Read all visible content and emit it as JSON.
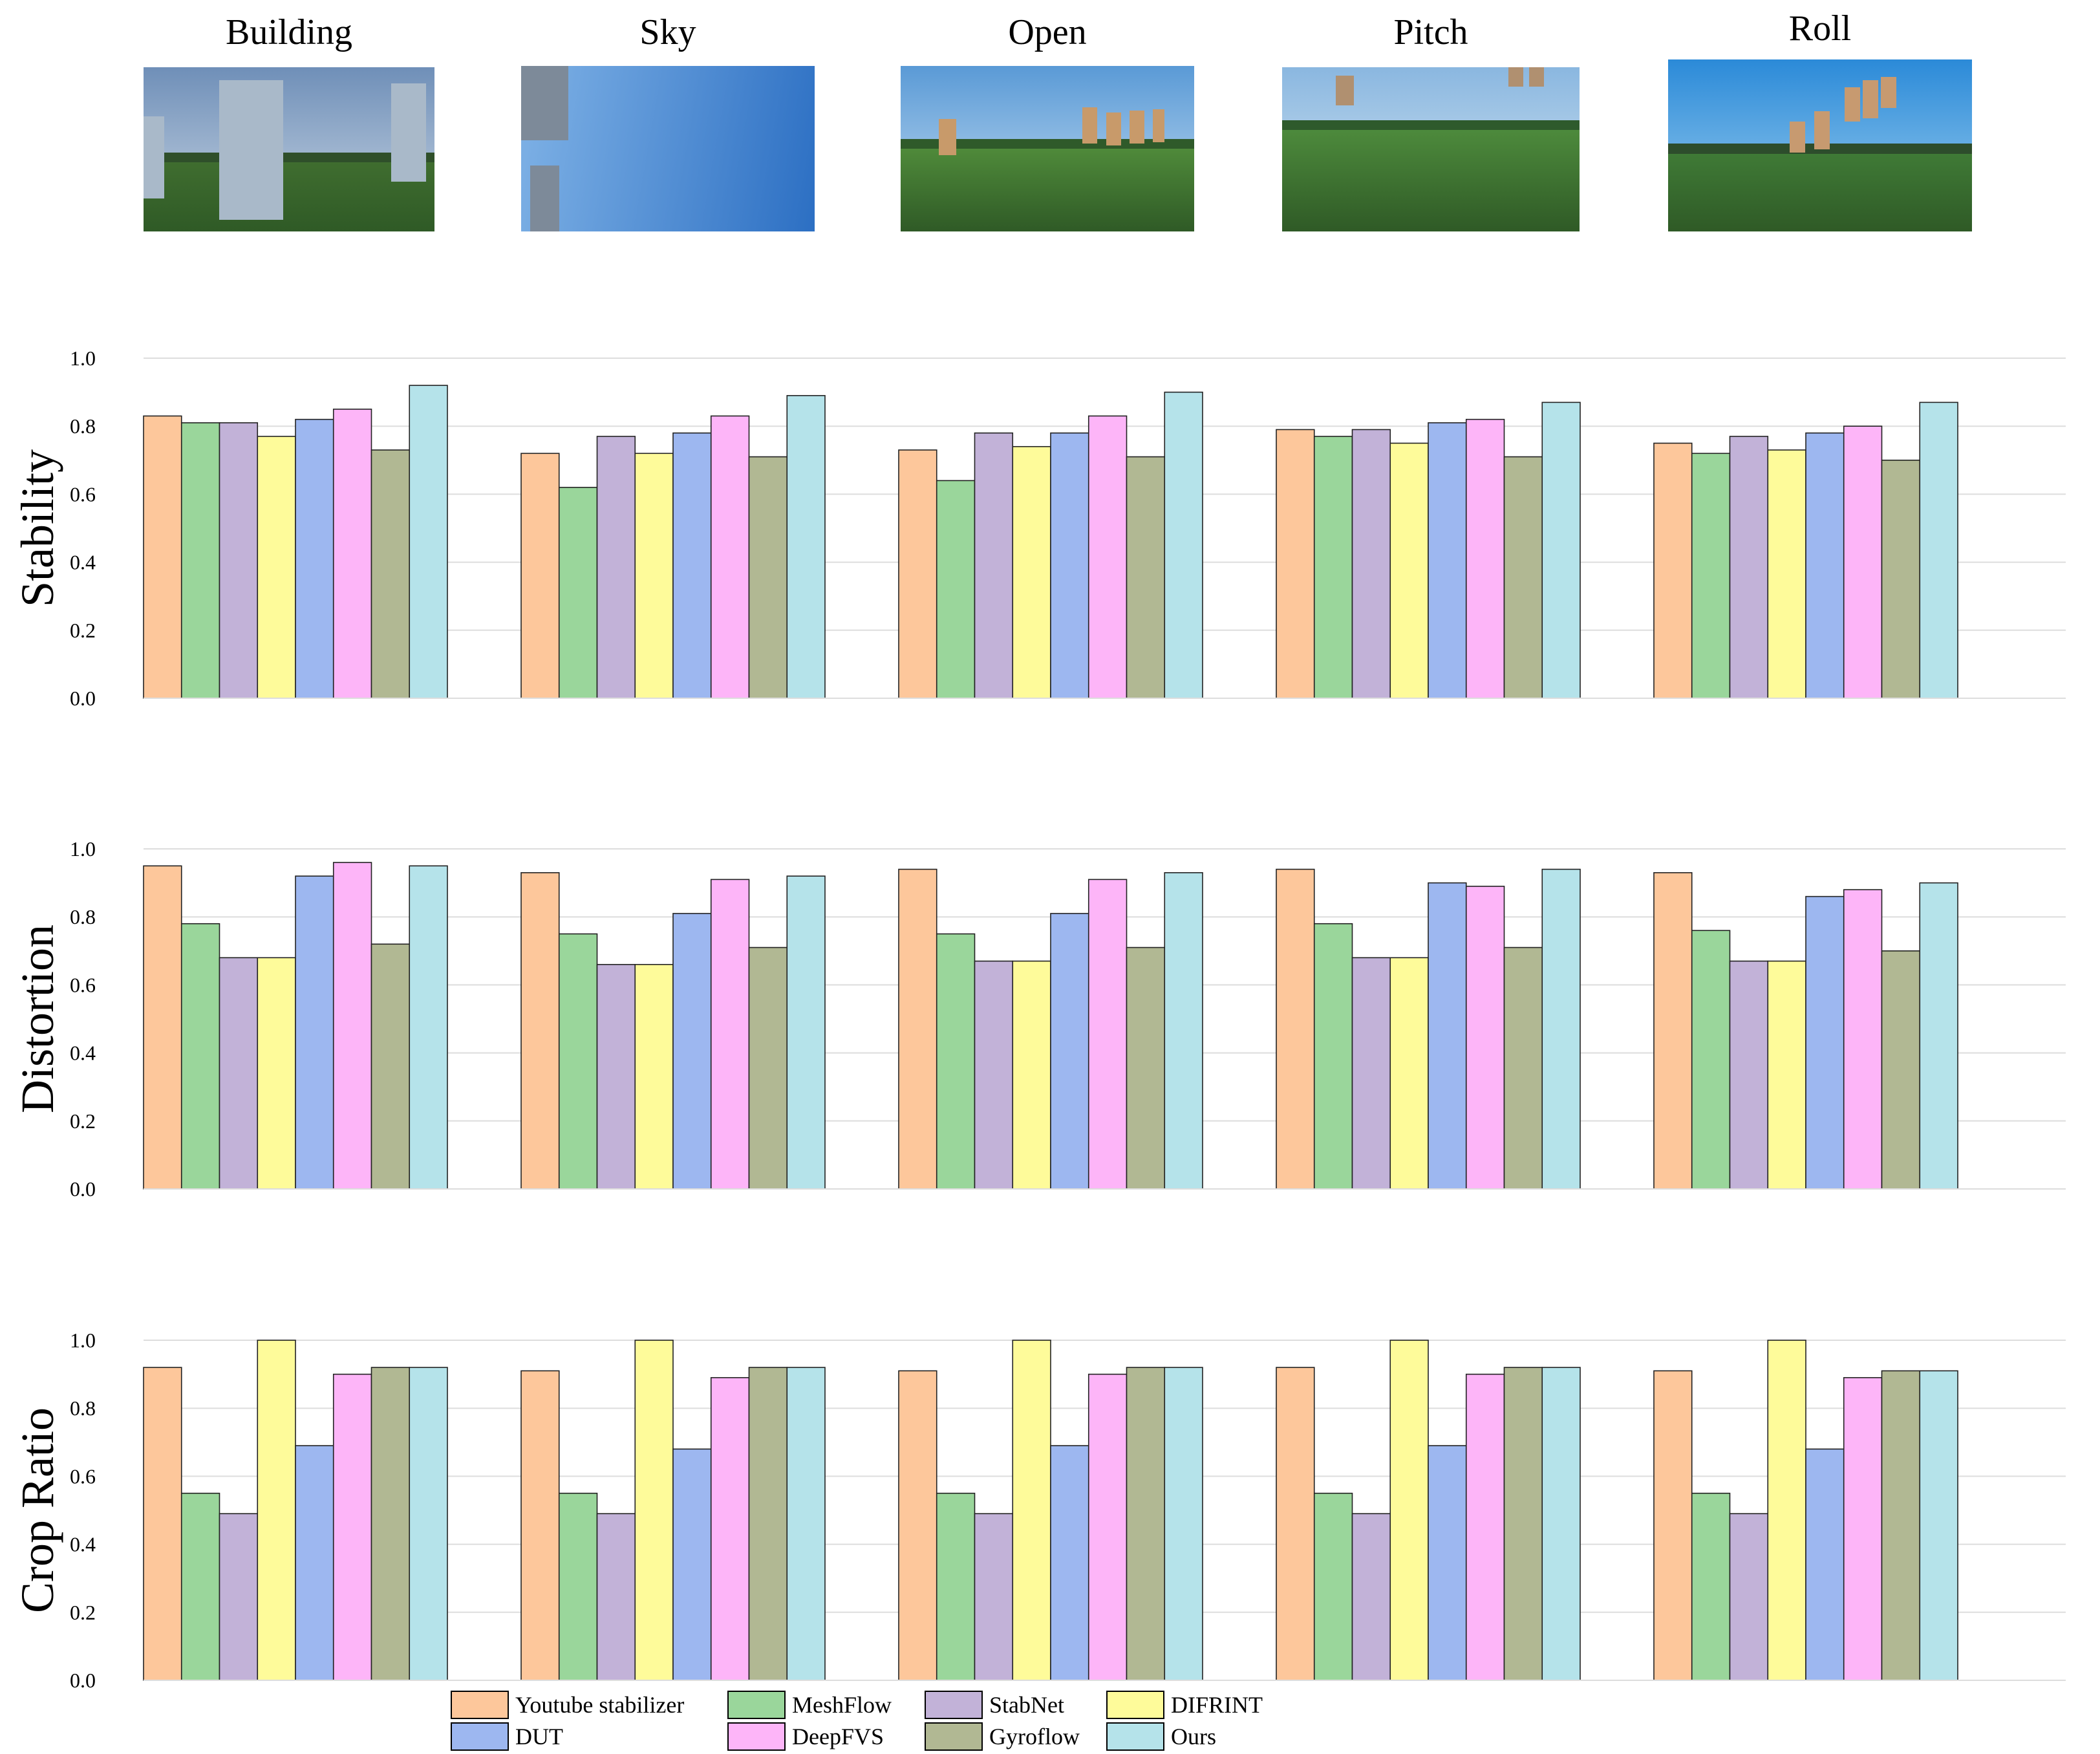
{
  "scenes": [
    {
      "name": "Building",
      "thumb": {
        "sky_top": "#6f8fb8",
        "sky_bottom": "#c9d6e4",
        "ground": "#3f6d2f",
        "building": "#a9b9c9",
        "tree": "#2f4f2a"
      }
    },
    {
      "name": "Sky",
      "thumb": {
        "sky_top": "#2c6fc3",
        "sky_bottom": "#7fb2e6",
        "ground": "#5e7ea6",
        "building": "#7d8a99",
        "tree": "#3b4b5c"
      }
    },
    {
      "name": "Open",
      "thumb": {
        "sky_top": "#5a9ad6",
        "sky_bottom": "#c8dff2",
        "ground": "#4f8a3a",
        "building": "#c89a6a",
        "tree": "#2f5a2a"
      }
    },
    {
      "name": "Pitch",
      "thumb": {
        "sky_top": "#8ab7e0",
        "sky_bottom": "#d8e8f2",
        "ground": "#4d8a3c",
        "building": "#b09070",
        "tree": "#2e5a2c"
      }
    },
    {
      "name": "Roll",
      "thumb": {
        "sky_top": "#2b8ad8",
        "sky_bottom": "#9fd0f0",
        "ground": "#3f7a36",
        "building": "#c79a70",
        "tree": "#2d4d2c"
      }
    }
  ],
  "methods": [
    {
      "name": "Youtube stabilizer",
      "color": "#fdc79b"
    },
    {
      "name": "MeshFlow",
      "color": "#9ad69b"
    },
    {
      "name": "StabNet",
      "color": "#c2b2d8"
    },
    {
      "name": "DIFRINT",
      "color": "#fefb9a"
    },
    {
      "name": "DUT",
      "color": "#9db7f0"
    },
    {
      "name": "DeepFVS",
      "color": "#fdb5f8"
    },
    {
      "name": "Gyroflow",
      "color": "#b1b893"
    },
    {
      "name": "Ours",
      "color": "#b5e3ea"
    }
  ],
  "chart_data": [
    {
      "type": "bar",
      "ylabel": "Stability",
      "ylim": [
        0,
        1.0
      ],
      "yticks": [
        0.0,
        0.2,
        0.4,
        0.6,
        0.8,
        1.0
      ],
      "ytick_labels": [
        "0.0",
        "0.2",
        "0.4",
        "0.6",
        "0.8",
        "1.0"
      ],
      "grid": true,
      "categories": [
        "Building",
        "Sky",
        "Open",
        "Pitch",
        "Roll"
      ],
      "series": [
        {
          "name": "Youtube stabilizer",
          "values": [
            0.83,
            0.72,
            0.73,
            0.79,
            0.75
          ]
        },
        {
          "name": "MeshFlow",
          "values": [
            0.81,
            0.62,
            0.64,
            0.77,
            0.72
          ]
        },
        {
          "name": "StabNet",
          "values": [
            0.81,
            0.77,
            0.78,
            0.79,
            0.77
          ]
        },
        {
          "name": "DIFRINT",
          "values": [
            0.77,
            0.72,
            0.74,
            0.75,
            0.73
          ]
        },
        {
          "name": "DUT",
          "values": [
            0.82,
            0.78,
            0.78,
            0.81,
            0.78
          ]
        },
        {
          "name": "DeepFVS",
          "values": [
            0.85,
            0.83,
            0.83,
            0.82,
            0.8
          ]
        },
        {
          "name": "Gyroflow",
          "values": [
            0.73,
            0.71,
            0.71,
            0.71,
            0.7
          ]
        },
        {
          "name": "Ours",
          "values": [
            0.92,
            0.89,
            0.9,
            0.87,
            0.87
          ]
        }
      ]
    },
    {
      "type": "bar",
      "ylabel": "Distortion",
      "ylim": [
        0,
        1.0
      ],
      "yticks": [
        0.0,
        0.2,
        0.4,
        0.6,
        0.8,
        1.0
      ],
      "ytick_labels": [
        "0.0",
        "0.2",
        "0.4",
        "0.6",
        "0.8",
        "1.0"
      ],
      "grid": true,
      "categories": [
        "Building",
        "Sky",
        "Open",
        "Pitch",
        "Roll"
      ],
      "series": [
        {
          "name": "Youtube stabilizer",
          "values": [
            0.95,
            0.93,
            0.94,
            0.94,
            0.93
          ]
        },
        {
          "name": "MeshFlow",
          "values": [
            0.78,
            0.75,
            0.75,
            0.78,
            0.76
          ]
        },
        {
          "name": "StabNet",
          "values": [
            0.68,
            0.66,
            0.67,
            0.68,
            0.67
          ]
        },
        {
          "name": "DIFRINT",
          "values": [
            0.68,
            0.66,
            0.67,
            0.68,
            0.67
          ]
        },
        {
          "name": "DUT",
          "values": [
            0.92,
            0.81,
            0.81,
            0.9,
            0.86
          ]
        },
        {
          "name": "DeepFVS",
          "values": [
            0.96,
            0.91,
            0.91,
            0.89,
            0.88
          ]
        },
        {
          "name": "Gyroflow",
          "values": [
            0.72,
            0.71,
            0.71,
            0.71,
            0.7
          ]
        },
        {
          "name": "Ours",
          "values": [
            0.95,
            0.92,
            0.93,
            0.94,
            0.9
          ]
        }
      ]
    },
    {
      "type": "bar",
      "ylabel": "Crop Ratio",
      "ylim": [
        0,
        1.0
      ],
      "yticks": [
        0.0,
        0.2,
        0.4,
        0.6,
        0.8,
        1.0
      ],
      "ytick_labels": [
        "0.0",
        "0.2",
        "0.4",
        "0.6",
        "0.8",
        "1.0"
      ],
      "grid": true,
      "categories": [
        "Building",
        "Sky",
        "Open",
        "Pitch",
        "Roll"
      ],
      "series": [
        {
          "name": "Youtube stabilizer",
          "values": [
            0.92,
            0.91,
            0.91,
            0.92,
            0.91
          ]
        },
        {
          "name": "MeshFlow",
          "values": [
            0.55,
            0.55,
            0.55,
            0.55,
            0.55
          ]
        },
        {
          "name": "StabNet",
          "values": [
            0.49,
            0.49,
            0.49,
            0.49,
            0.49
          ]
        },
        {
          "name": "DIFRINT",
          "values": [
            1.0,
            1.0,
            1.0,
            1.0,
            1.0
          ]
        },
        {
          "name": "DUT",
          "values": [
            0.69,
            0.68,
            0.69,
            0.69,
            0.68
          ]
        },
        {
          "name": "DeepFVS",
          "values": [
            0.9,
            0.89,
            0.9,
            0.9,
            0.89
          ]
        },
        {
          "name": "Gyroflow",
          "values": [
            0.92,
            0.92,
            0.92,
            0.92,
            0.91
          ]
        },
        {
          "name": "Ours",
          "values": [
            0.92,
            0.92,
            0.92,
            0.92,
            0.91
          ]
        }
      ]
    }
  ]
}
